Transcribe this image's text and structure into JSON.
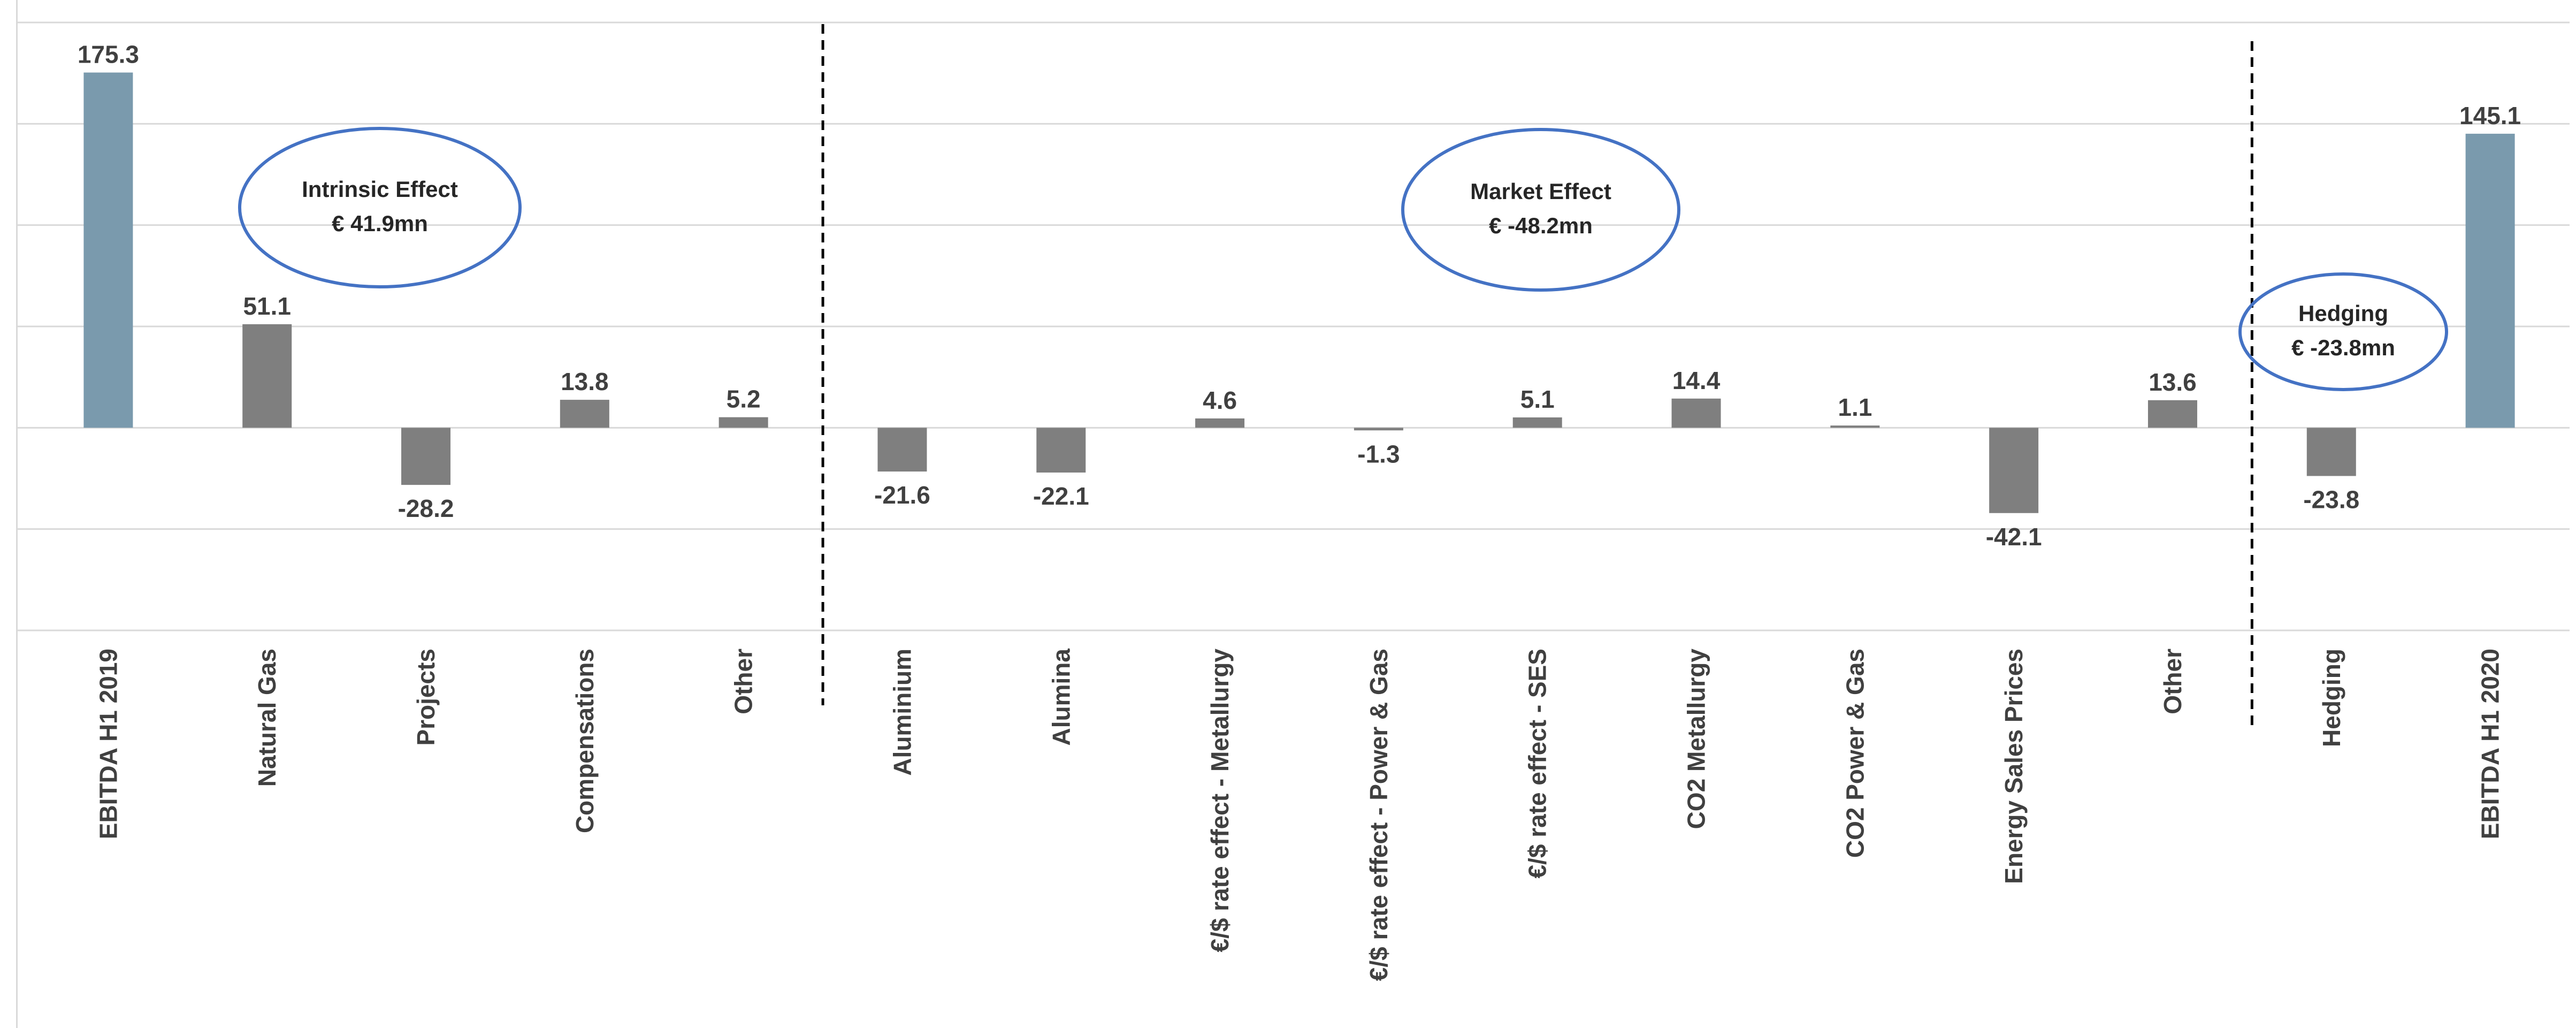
{
  "chart_data": {
    "type": "bar",
    "categories": [
      "EBITDA H1 2019",
      "Natural Gas",
      "Projects",
      "Compensations",
      "Other",
      "Aluminium",
      "Alumina",
      "€/$ rate effect - Metallurgy",
      "€/$ rate effect - Power & Gas",
      "€/$ rate effect - SES",
      "CO2 Metallurgy",
      "CO2 Power & Gas",
      "Energy Sales Prices",
      "Other",
      "Hedging",
      "EBITDA H1 2020"
    ],
    "values": [
      175.3,
      51.1,
      -28.2,
      13.8,
      5.2,
      -21.6,
      -22.1,
      4.6,
      -1.3,
      5.1,
      14.4,
      1.1,
      -42.1,
      13.6,
      -23.8,
      145.1
    ],
    "value_labels": [
      "175.3",
      "51.1",
      "-28.2",
      "13.8",
      "5.2",
      "-21.6",
      "-22.1",
      "4.6",
      "-1.3",
      "5.1",
      "14.4",
      "1.1",
      "-42.1",
      "13.6",
      "-23.8",
      "145.1"
    ],
    "bar_kinds": [
      "total",
      "change",
      "change",
      "change",
      "change",
      "change",
      "change",
      "change",
      "change",
      "change",
      "change",
      "change",
      "change",
      "change",
      "change",
      "total"
    ],
    "ylim": [
      -100,
      200
    ],
    "gridline_values": [
      -100,
      -50,
      0,
      50,
      100,
      150,
      200
    ],
    "grid": true,
    "colors": {
      "total": "#7a9aad",
      "change": "#7f7f7f",
      "grid": "#d9d9d9",
      "ellipse": "#4472c4",
      "divider": "#000000",
      "text": "#404040"
    },
    "dividers_after_index": [
      4,
      13
    ],
    "annotations": [
      {
        "line1": "Intrinsic Effect",
        "line2": "€ 41.9mn",
        "between": [
          1,
          3
        ]
      },
      {
        "line1": "Market Effect",
        "line2": "€ -48.2mn",
        "between": [
          8,
          9
        ]
      },
      {
        "line1": "Hedging",
        "line2": "€ -23.8mn",
        "between": [
          14,
          14
        ]
      }
    ]
  }
}
